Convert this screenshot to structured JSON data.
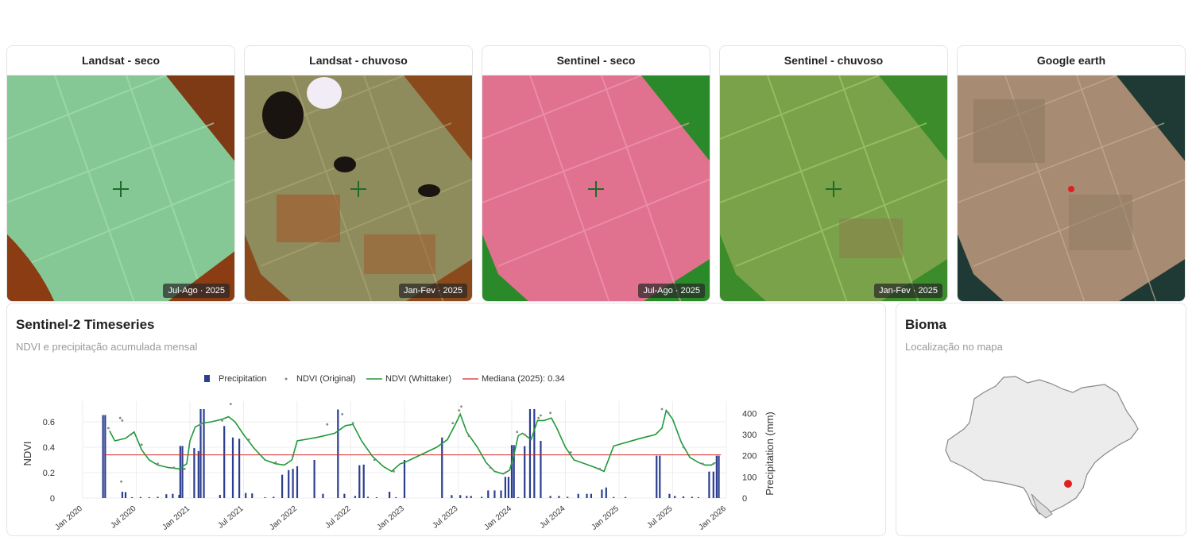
{
  "cards": [
    {
      "title": "Landsat - seco",
      "badge": "Jul-Ago · 2025",
      "bg": "#86c895"
    },
    {
      "title": "Landsat - chuvoso",
      "badge": "Jan-Fev · 2025",
      "bg": "#8c8a5a"
    },
    {
      "title": "Sentinel - seco",
      "badge": "Jul-Ago · 2025",
      "bg": "#e0718f"
    },
    {
      "title": "Sentinel - chuvoso",
      "badge": "Jan-Fev · 2025",
      "bg": "#7aa24a"
    },
    {
      "title": "Google earth",
      "badge": "",
      "bg": "#a78b72"
    }
  ],
  "timeseries": {
    "title": "Sentinel-2 Timeseries",
    "subtitle": "NDVI e precipitação acumulada mensal"
  },
  "bioma": {
    "title": "Bioma",
    "subtitle": "Localização no mapa"
  },
  "chart_data": {
    "type": "line",
    "legend": [
      "Precipitation",
      "NDVI (Original)",
      "NDVI (Whittaker)",
      "Mediana (2025): 0.34"
    ],
    "legend_position": "top",
    "ylabel": "NDVI",
    "y2label": "Precipitation (mm)",
    "x_ticks": [
      "Jan 2020",
      "Jul 2020",
      "Jan 2021",
      "Jul 2021",
      "Jan 2022",
      "Jul 2022",
      "Jan 2023",
      "Jul 2023",
      "Jan 2024",
      "Jul 2024",
      "Jan 2025",
      "Jul 2025",
      "Jan 2026"
    ],
    "y_ticks": [
      0,
      0.2,
      0.4,
      0.6
    ],
    "y2_ticks": [
      0,
      100,
      200,
      300,
      400
    ],
    "ylim": [
      0,
      0.7
    ],
    "y2lim": [
      0,
      420
    ],
    "median": 0.34,
    "colors": {
      "precip": "#2c3e8f",
      "ndvi_orig": "#888888",
      "ndvi_smooth": "#1f9a3a",
      "median": "#d62728"
    },
    "ndvi_smooth": [
      [
        2020.25,
        0.53
      ],
      [
        2020.3,
        0.45
      ],
      [
        2020.4,
        0.47
      ],
      [
        2020.48,
        0.52
      ],
      [
        2020.55,
        0.38
      ],
      [
        2020.62,
        0.3
      ],
      [
        2020.7,
        0.26
      ],
      [
        2020.8,
        0.24
      ],
      [
        2020.9,
        0.23
      ],
      [
        2020.97,
        0.27
      ],
      [
        2021.0,
        0.45
      ],
      [
        2021.05,
        0.56
      ],
      [
        2021.12,
        0.59
      ],
      [
        2021.2,
        0.6
      ],
      [
        2021.3,
        0.62
      ],
      [
        2021.36,
        0.64
      ],
      [
        2021.42,
        0.6
      ],
      [
        2021.5,
        0.5
      ],
      [
        2021.6,
        0.39
      ],
      [
        2021.7,
        0.3
      ],
      [
        2021.8,
        0.27
      ],
      [
        2021.88,
        0.26
      ],
      [
        2021.95,
        0.3
      ],
      [
        2022.0,
        0.45
      ],
      [
        2022.2,
        0.48
      ],
      [
        2022.35,
        0.51
      ],
      [
        2022.45,
        0.57
      ],
      [
        2022.52,
        0.58
      ],
      [
        2022.6,
        0.45
      ],
      [
        2022.7,
        0.33
      ],
      [
        2022.8,
        0.25
      ],
      [
        2022.88,
        0.21
      ],
      [
        2022.96,
        0.27
      ],
      [
        2023.0,
        0.28
      ],
      [
        2023.3,
        0.4
      ],
      [
        2023.4,
        0.46
      ],
      [
        2023.48,
        0.59
      ],
      [
        2023.52,
        0.66
      ],
      [
        2023.58,
        0.52
      ],
      [
        2023.68,
        0.4
      ],
      [
        2023.76,
        0.28
      ],
      [
        2023.84,
        0.21
      ],
      [
        2023.92,
        0.19
      ],
      [
        2023.98,
        0.22
      ],
      [
        2024.02,
        0.34
      ],
      [
        2024.06,
        0.49
      ],
      [
        2024.1,
        0.51
      ],
      [
        2024.18,
        0.46
      ],
      [
        2024.24,
        0.61
      ],
      [
        2024.3,
        0.61
      ],
      [
        2024.37,
        0.63
      ],
      [
        2024.42,
        0.55
      ],
      [
        2024.5,
        0.4
      ],
      [
        2024.58,
        0.3
      ],
      [
        2024.68,
        0.27
      ],
      [
        2024.78,
        0.24
      ],
      [
        2024.86,
        0.21
      ],
      [
        2024.95,
        0.41
      ],
      [
        2025.2,
        0.47
      ],
      [
        2025.34,
        0.5
      ],
      [
        2025.4,
        0.55
      ],
      [
        2025.44,
        0.69
      ],
      [
        2025.5,
        0.62
      ],
      [
        2025.58,
        0.44
      ],
      [
        2025.66,
        0.32
      ],
      [
        2025.74,
        0.28
      ],
      [
        2025.8,
        0.26
      ],
      [
        2025.86,
        0.26
      ],
      [
        2025.9,
        0.28
      ]
    ],
    "ndvi_original": [
      [
        2020.24,
        0.55
      ],
      [
        2020.35,
        0.63
      ],
      [
        2020.37,
        0.61
      ],
      [
        2020.36,
        0.13
      ],
      [
        2020.45,
        0.5
      ],
      [
        2020.55,
        0.42
      ],
      [
        2020.7,
        0.27
      ],
      [
        2020.85,
        0.24
      ],
      [
        2020.95,
        0.23
      ],
      [
        2021.1,
        0.58
      ],
      [
        2021.3,
        0.61
      ],
      [
        2021.38,
        0.74
      ],
      [
        2021.55,
        0.46
      ],
      [
        2021.8,
        0.28
      ],
      [
        2021.96,
        0.33
      ],
      [
        2022.28,
        0.58
      ],
      [
        2022.42,
        0.66
      ],
      [
        2022.52,
        0.59
      ],
      [
        2022.72,
        0.3
      ],
      [
        2022.9,
        0.21
      ],
      [
        2023.45,
        0.59
      ],
      [
        2023.51,
        0.69
      ],
      [
        2023.53,
        0.72
      ],
      [
        2023.6,
        0.49
      ],
      [
        2023.8,
        0.24
      ],
      [
        2023.94,
        0.2
      ],
      [
        2024.05,
        0.52
      ],
      [
        2024.12,
        0.5
      ],
      [
        2024.25,
        0.63
      ],
      [
        2024.27,
        0.65
      ],
      [
        2024.36,
        0.67
      ],
      [
        2024.55,
        0.36
      ],
      [
        2024.82,
        0.23
      ],
      [
        2025.4,
        0.7
      ],
      [
        2025.46,
        0.67
      ],
      [
        2025.6,
        0.4
      ],
      [
        2025.78,
        0.27
      ],
      [
        2025.88,
        0.27
      ]
    ],
    "precipitation": [
      [
        2020.19,
        392
      ],
      [
        2020.21,
        392
      ],
      [
        2020.37,
        30
      ],
      [
        2020.4,
        28
      ],
      [
        2020.46,
        4
      ],
      [
        2020.54,
        5
      ],
      [
        2020.62,
        4
      ],
      [
        2020.7,
        6
      ],
      [
        2020.78,
        18
      ],
      [
        2020.84,
        20
      ],
      [
        2020.9,
        15
      ],
      [
        2020.91,
        246
      ],
      [
        2020.93,
        246
      ],
      [
        2021.04,
        236
      ],
      [
        2021.08,
        222
      ],
      [
        2021.1,
        420
      ],
      [
        2021.13,
        420
      ],
      [
        2021.28,
        15
      ],
      [
        2021.32,
        340
      ],
      [
        2021.4,
        286
      ],
      [
        2021.46,
        280
      ],
      [
        2021.52,
        24
      ],
      [
        2021.58,
        22
      ],
      [
        2021.7,
        4
      ],
      [
        2021.78,
        6
      ],
      [
        2021.86,
        110
      ],
      [
        2021.92,
        132
      ],
      [
        2021.96,
        138
      ],
      [
        2022.0,
        150
      ],
      [
        2022.16,
        180
      ],
      [
        2022.24,
        20
      ],
      [
        2022.38,
        418
      ],
      [
        2022.44,
        20
      ],
      [
        2022.54,
        10
      ],
      [
        2022.58,
        155
      ],
      [
        2022.62,
        158
      ],
      [
        2022.66,
        6
      ],
      [
        2022.74,
        4
      ],
      [
        2022.86,
        30
      ],
      [
        2022.92,
        4
      ],
      [
        2023.0,
        180
      ],
      [
        2023.35,
        286
      ],
      [
        2023.44,
        14
      ],
      [
        2023.52,
        14
      ],
      [
        2023.58,
        10
      ],
      [
        2023.62,
        10
      ],
      [
        2023.72,
        6
      ],
      [
        2023.78,
        36
      ],
      [
        2023.84,
        36
      ],
      [
        2023.9,
        36
      ],
      [
        2023.94,
        100
      ],
      [
        2023.97,
        100
      ],
      [
        2024.0,
        250
      ],
      [
        2024.02,
        250
      ],
      [
        2024.06,
        4
      ],
      [
        2024.12,
        245
      ],
      [
        2024.17,
        420
      ],
      [
        2024.21,
        420
      ],
      [
        2024.27,
        270
      ],
      [
        2024.36,
        10
      ],
      [
        2024.44,
        10
      ],
      [
        2024.52,
        6
      ],
      [
        2024.62,
        20
      ],
      [
        2024.7,
        20
      ],
      [
        2024.74,
        20
      ],
      [
        2024.84,
        40
      ],
      [
        2024.88,
        50
      ],
      [
        2024.95,
        5
      ],
      [
        2025.06,
        5
      ],
      [
        2025.35,
        200
      ],
      [
        2025.38,
        200
      ],
      [
        2025.47,
        20
      ],
      [
        2025.52,
        10
      ],
      [
        2025.6,
        8
      ],
      [
        2025.68,
        6
      ],
      [
        2025.74,
        4
      ],
      [
        2025.84,
        125
      ],
      [
        2025.88,
        125
      ],
      [
        2025.91,
        200
      ],
      [
        2025.93,
        200
      ]
    ]
  }
}
